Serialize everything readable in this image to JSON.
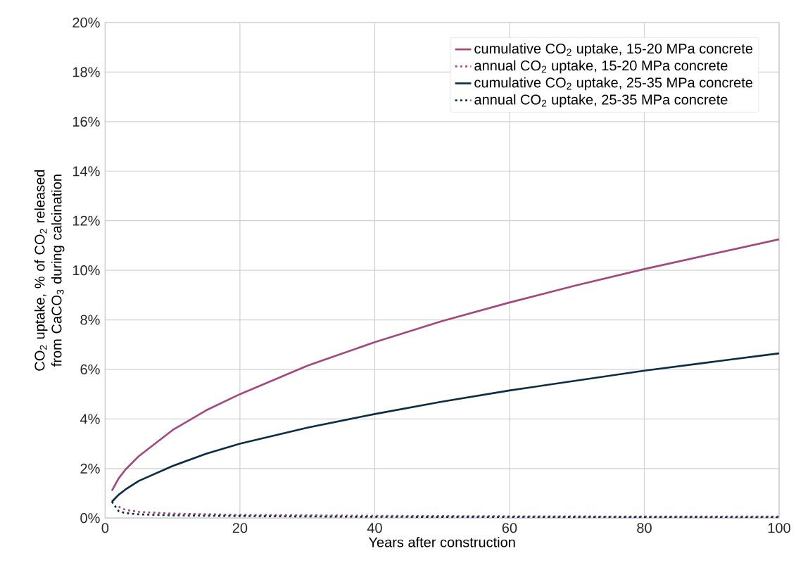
{
  "chart_data": {
    "type": "line",
    "xlabel": "Years after construction",
    "ylabel": "CO$_{2}$ uptake, % of CO$_{2}$ released from CaCO$_{3}$ during calcination",
    "xlim": [
      0,
      100
    ],
    "ylim": [
      0,
      20
    ],
    "xticks": [
      0,
      20,
      40,
      60,
      80,
      100
    ],
    "yticks": [
      {
        "value": 0,
        "label": "0%"
      },
      {
        "value": 2,
        "label": "2%"
      },
      {
        "value": 4,
        "label": "4%"
      },
      {
        "value": 6,
        "label": "6%"
      },
      {
        "value": 8,
        "label": "8%"
      },
      {
        "value": 10,
        "label": "10%"
      },
      {
        "value": 12,
        "label": "12%"
      },
      {
        "value": 14,
        "label": "14%"
      },
      {
        "value": 16,
        "label": "16%"
      },
      {
        "value": 18,
        "label": "18%"
      },
      {
        "value": 20,
        "label": "20%"
      }
    ],
    "grid": true,
    "legend": "top right",
    "marker": "none",
    "series": [
      {
        "name": "cumulative CO$_{2}$ uptake, 15-20 MPa concrete",
        "color": "#a24a80",
        "line_style": "solid",
        "x": [
          1,
          2,
          3,
          5,
          10,
          15,
          20,
          30,
          40,
          50,
          60,
          70,
          80,
          90,
          100
        ],
        "values": [
          1.1,
          1.6,
          1.95,
          2.5,
          3.55,
          4.35,
          5.0,
          6.15,
          7.1,
          7.95,
          8.7,
          9.4,
          10.05,
          10.65,
          11.25
        ]
      },
      {
        "name": "annual CO$_{2}$ uptake, 15-20 MPa concrete",
        "color": "#a24a80",
        "line_style": "dotted",
        "x": [
          2,
          3,
          5,
          10,
          20,
          40,
          60,
          80,
          100
        ],
        "values": [
          0.46,
          0.33,
          0.25,
          0.18,
          0.13,
          0.09,
          0.07,
          0.06,
          0.06
        ]
      },
      {
        "name": "cumulative CO$_{2}$ uptake, 25-35 MPa concrete",
        "color": "#0b2d45",
        "line_style": "solid",
        "x": [
          1,
          2,
          3,
          5,
          10,
          15,
          20,
          30,
          40,
          50,
          60,
          70,
          80,
          90,
          100
        ],
        "values": [
          0.66,
          0.94,
          1.15,
          1.5,
          2.1,
          2.6,
          3.0,
          3.65,
          4.2,
          4.7,
          5.15,
          5.55,
          5.95,
          6.3,
          6.65
        ]
      },
      {
        "name": "annual CO$_{2}$ uptake, 25-35 MPa concrete",
        "color": "#0b2d45",
        "line_style": "dotted",
        "x": [
          1,
          2,
          3,
          5,
          10,
          20,
          40,
          60,
          80,
          100
        ],
        "values": [
          0.66,
          0.28,
          0.2,
          0.15,
          0.11,
          0.08,
          0.05,
          0.04,
          0.04,
          0.03
        ]
      }
    ]
  }
}
